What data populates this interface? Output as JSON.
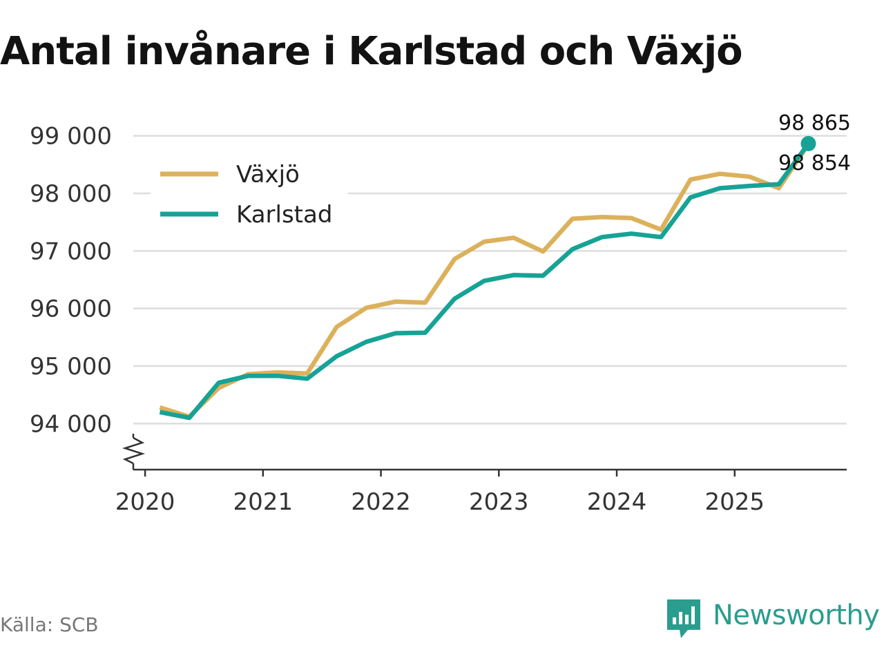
{
  "title": "Antal invånare i Karlstad och Växjö",
  "source": "Källa: SCB",
  "brand": "Newsworthy",
  "colors": {
    "vaxjo": "#dcb15c",
    "karlstad": "#16a396",
    "grid": "#dddddd",
    "axis": "#333333",
    "brand": "#2a9d8f"
  },
  "chart_data": {
    "type": "line",
    "title": "Antal invånare i Karlstad och Växjö",
    "xlabel": "",
    "ylabel": "",
    "ylim": [
      93200,
      99200
    ],
    "xlim": [
      2019.9,
      2025.95
    ],
    "yticks": [
      94000,
      95000,
      96000,
      97000,
      98000,
      99000
    ],
    "ytick_labels": [
      "94 000",
      "95 000",
      "96 000",
      "97 000",
      "98 000",
      "99 000"
    ],
    "xticks": [
      2020,
      2021,
      2022,
      2023,
      2024,
      2025
    ],
    "xtick_labels": [
      "2020",
      "2021",
      "2022",
      "2023",
      "2024",
      "2025"
    ],
    "legend_position": "top-left",
    "x": [
      2020.125,
      2020.375,
      2020.625,
      2020.875,
      2021.125,
      2021.375,
      2021.625,
      2021.875,
      2022.125,
      2022.375,
      2022.625,
      2022.875,
      2023.125,
      2023.375,
      2023.625,
      2023.875,
      2024.125,
      2024.375,
      2024.625,
      2024.875,
      2025.125,
      2025.375,
      2025.625
    ],
    "series": [
      {
        "name": "Växjö",
        "key": "vaxjo",
        "values": [
          94280,
          94120,
          94620,
          94860,
          94890,
          94870,
          95680,
          96010,
          96120,
          96100,
          96860,
          97160,
          97230,
          96990,
          97560,
          97590,
          97570,
          97370,
          98240,
          98340,
          98290,
          98090,
          98854
        ],
        "end_label": "98 854"
      },
      {
        "name": "Karlstad",
        "key": "karlstad",
        "values": [
          94200,
          94100,
          94710,
          94830,
          94830,
          94780,
          95170,
          95420,
          95570,
          95580,
          96170,
          96480,
          96580,
          96570,
          97030,
          97240,
          97300,
          97240,
          97930,
          98090,
          98130,
          98160,
          98865
        ],
        "end_label": "98 865"
      }
    ]
  }
}
